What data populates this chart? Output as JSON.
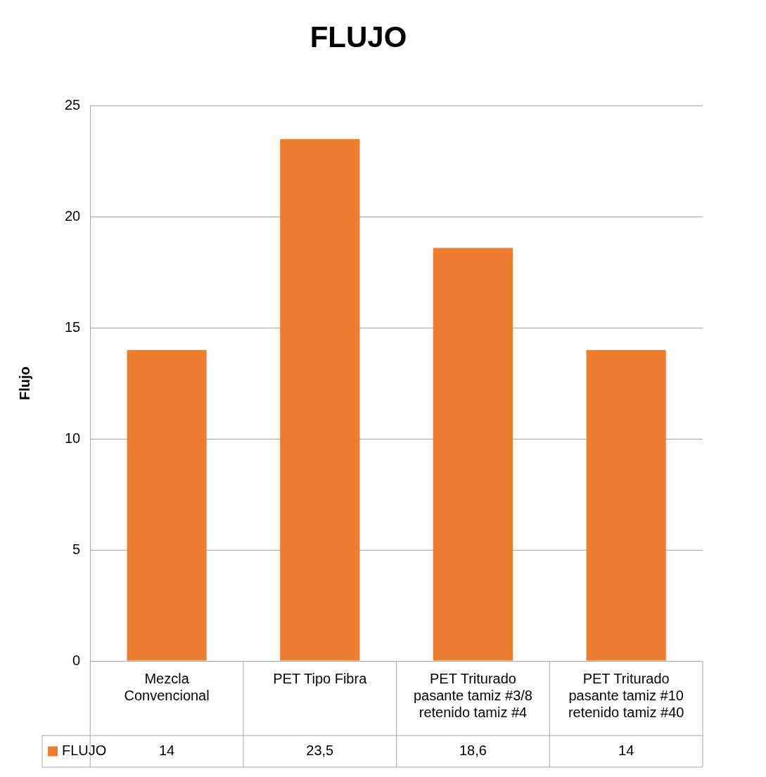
{
  "chart_data": {
    "type": "bar",
    "title": "FLUJO",
    "ylabel": "Flujo",
    "categories": [
      "Mezcla Convencional",
      "PET Tipo Fibra",
      "PET Triturado pasante tamiz #3/8 retenido tamiz #4",
      "PET Triturado pasante tamiz #10 retenido tamiz #40"
    ],
    "series": [
      {
        "name": "FLUJO",
        "color": "#ed7d31",
        "values": [
          14,
          23.5,
          18.6,
          14
        ],
        "value_labels": [
          "14",
          "23,5",
          "18,6",
          "14"
        ]
      }
    ],
    "ylim": [
      0,
      25
    ],
    "yticks": [
      0,
      5,
      10,
      15,
      20,
      25
    ],
    "grid": "y",
    "legend": "bottom"
  }
}
